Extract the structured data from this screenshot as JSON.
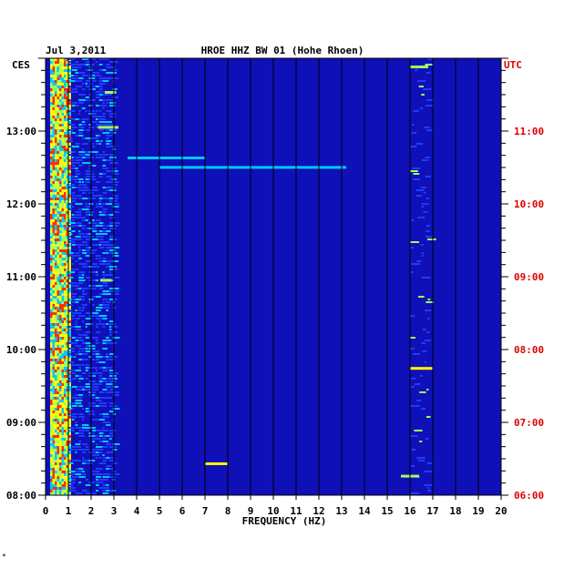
{
  "chart_data": {
    "type": "heatmap",
    "date": "Jul 3,2011",
    "station": "HROE HHZ BW 01 (Hohe Rhoen)",
    "left_tz": "CES",
    "right_tz": "UTC",
    "xlabel": "FREQUENCY (HZ)",
    "xlim": [
      0,
      20
    ],
    "x_ticks": [
      "0",
      "1",
      "2",
      "3",
      "4",
      "5",
      "6",
      "7",
      "8",
      "9",
      "10",
      "11",
      "12",
      "13",
      "14",
      "15",
      "16",
      "17",
      "18",
      "19",
      "20"
    ],
    "left_time_labels": [
      "13:00",
      "12:00",
      "11:00",
      "10:00",
      "09:00",
      "08:00"
    ],
    "right_time_labels": [
      "11:00",
      "10:00",
      "09:00",
      "08:00",
      "07:00",
      "06:00"
    ],
    "time_hours_ces": [
      13,
      12,
      11,
      10,
      9,
      8
    ],
    "ylim_hours_ces": [
      8,
      14
    ],
    "colors": {
      "background": "#1010b8",
      "grid": "#000000",
      "utc": "#dd0000",
      "hot": [
        "#1e3cff",
        "#00c8ff",
        "#a0ff60",
        "#ffff00",
        "#ff3000"
      ]
    },
    "features": [
      {
        "name": "microseism band",
        "freq_range_hz": [
          0.2,
          1.0
        ],
        "intensity": "high"
      },
      {
        "name": "secondary band",
        "freq_range_hz": [
          16.0,
          17.0
        ],
        "intensity": "moderate"
      },
      {
        "name": "event 12:35",
        "freq_range_hz": [
          3.5,
          13.0
        ],
        "intensity": "moderate"
      },
      {
        "name": "event 08:24",
        "freq_range_hz": [
          7.0,
          8.0
        ],
        "intensity": "moderate"
      },
      {
        "name": "event 09:45",
        "freq_range_hz": [
          16.0,
          17.0
        ],
        "intensity": "moderate"
      }
    ],
    "footer_mark": "*"
  }
}
